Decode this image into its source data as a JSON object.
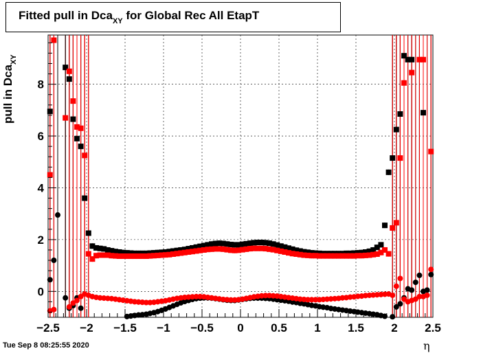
{
  "title_main": "Fitted pull in Dca",
  "title_sub": "XY",
  "title_rest": " for Global Rec All EtapT",
  "timestamp": "Tue Sep  8 08:25:55 2020",
  "chart_data": {
    "type": "scatter",
    "title": "Fitted pull in Dca_XY for Global Rec All EtapT",
    "xlabel": "η",
    "ylabel": "pull in Dca_XY",
    "xlim": [
      -2.5,
      2.5
    ],
    "ylim": [
      -1.0,
      9.9
    ],
    "grid": true,
    "xticks": [
      -2.5,
      -2,
      -1.5,
      -1,
      -0.5,
      0,
      0.5,
      1,
      1.5,
      2,
      2.5
    ],
    "xtick_labels": [
      "−2.5",
      "−2",
      "−1.5",
      "−1",
      "−0.5",
      "0",
      "0.5",
      "1",
      "1.5",
      "2",
      "2.5"
    ],
    "yticks": [
      0,
      2,
      4,
      6,
      8
    ],
    "ytick_labels": [
      "0",
      "2",
      "4",
      "6",
      "8"
    ],
    "series": [
      {
        "color": "#000000",
        "marker": "square",
        "x": [
          -2.475,
          -2.425,
          -2.375,
          -2.325,
          -2.275,
          -2.225,
          -2.175,
          -2.125,
          -2.075,
          -2.025,
          -1.975,
          -1.925,
          -1.875,
          -1.825,
          -1.775,
          -1.725,
          -1.675,
          -1.625,
          -1.575,
          -1.525,
          -1.475,
          -1.425,
          -1.375,
          -1.325,
          -1.275,
          -1.225,
          -1.175,
          -1.125,
          -1.075,
          -1.025,
          -0.975,
          -0.925,
          -0.875,
          -0.825,
          -0.775,
          -0.725,
          -0.675,
          -0.625,
          -0.575,
          -0.525,
          -0.475,
          -0.425,
          -0.375,
          -0.325,
          -0.275,
          -0.225,
          -0.175,
          -0.125,
          -0.075,
          -0.025,
          0.025,
          0.075,
          0.125,
          0.175,
          0.225,
          0.275,
          0.325,
          0.375,
          0.425,
          0.475,
          0.525,
          0.575,
          0.625,
          0.675,
          0.725,
          0.775,
          0.825,
          0.875,
          0.925,
          0.975,
          1.025,
          1.075,
          1.125,
          1.175,
          1.225,
          1.275,
          1.325,
          1.375,
          1.425,
          1.475,
          1.525,
          1.575,
          1.625,
          1.675,
          1.725,
          1.775,
          1.825,
          1.875,
          1.925,
          1.975,
          2.025,
          2.075,
          2.125,
          2.175,
          2.225,
          2.275,
          2.325,
          2.375,
          2.425,
          2.475
        ],
        "y": [
          6.95,
          null,
          null,
          null,
          8.65,
          8.2,
          6.65,
          5.9,
          5.6,
          3.6,
          2.25,
          1.75,
          1.68,
          1.66,
          1.64,
          1.6,
          1.57,
          1.54,
          1.52,
          1.5,
          1.49,
          1.48,
          1.47,
          1.47,
          1.47,
          1.47,
          1.48,
          1.49,
          1.5,
          1.51,
          1.52,
          1.54,
          1.56,
          1.58,
          1.6,
          1.62,
          1.65,
          1.68,
          1.71,
          1.74,
          1.77,
          1.8,
          1.83,
          1.85,
          1.86,
          1.85,
          1.83,
          1.81,
          1.8,
          1.8,
          1.82,
          1.84,
          1.86,
          1.88,
          1.89,
          1.89,
          1.88,
          1.86,
          1.83,
          1.79,
          1.75,
          1.71,
          1.67,
          1.63,
          1.59,
          1.56,
          1.53,
          1.51,
          1.49,
          1.48,
          1.47,
          1.46,
          1.46,
          1.46,
          1.46,
          1.46,
          1.46,
          1.47,
          1.47,
          1.48,
          1.49,
          1.5,
          1.52,
          1.55,
          1.6,
          1.7,
          1.8,
          2.55,
          4.6,
          5.15,
          6.25,
          6.85,
          9.1,
          8.95,
          8.95,
          null,
          null,
          6.9,
          null,
          null
        ]
      },
      {
        "color": "#ff0000",
        "marker": "square",
        "x": [
          -2.475,
          -2.425,
          -2.375,
          -2.325,
          -2.275,
          -2.225,
          -2.175,
          -2.125,
          -2.075,
          -2.025,
          -1.975,
          -1.925,
          -1.875,
          -1.825,
          -1.775,
          -1.725,
          -1.675,
          -1.625,
          -1.575,
          -1.525,
          -1.475,
          -1.425,
          -1.375,
          -1.325,
          -1.275,
          -1.225,
          -1.175,
          -1.125,
          -1.075,
          -1.025,
          -0.975,
          -0.925,
          -0.875,
          -0.825,
          -0.775,
          -0.725,
          -0.675,
          -0.625,
          -0.575,
          -0.525,
          -0.475,
          -0.425,
          -0.375,
          -0.325,
          -0.275,
          -0.225,
          -0.175,
          -0.125,
          -0.075,
          -0.025,
          0.025,
          0.075,
          0.125,
          0.175,
          0.225,
          0.275,
          0.325,
          0.375,
          0.425,
          0.475,
          0.525,
          0.575,
          0.625,
          0.675,
          0.725,
          0.775,
          0.825,
          0.875,
          0.925,
          0.975,
          1.025,
          1.075,
          1.125,
          1.175,
          1.225,
          1.275,
          1.325,
          1.375,
          1.425,
          1.475,
          1.525,
          1.575,
          1.625,
          1.675,
          1.725,
          1.775,
          1.825,
          1.875,
          1.925,
          1.975,
          2.025,
          2.075,
          2.125,
          2.175,
          2.225,
          2.275,
          2.325,
          2.375,
          2.425,
          2.475
        ],
        "y": [
          4.5,
          9.7,
          null,
          null,
          6.7,
          8.5,
          7.35,
          6.35,
          6.3,
          5.25,
          1.45,
          1.25,
          1.38,
          1.4,
          1.4,
          1.4,
          1.38,
          1.37,
          1.36,
          1.36,
          1.36,
          1.36,
          1.36,
          1.36,
          1.36,
          1.36,
          1.37,
          1.38,
          1.39,
          1.4,
          1.41,
          1.42,
          1.44,
          1.46,
          1.48,
          1.5,
          1.52,
          1.54,
          1.56,
          1.58,
          1.6,
          1.62,
          1.63,
          1.64,
          1.64,
          1.63,
          1.61,
          1.59,
          1.58,
          1.59,
          1.61,
          1.63,
          1.65,
          1.66,
          1.66,
          1.66,
          1.65,
          1.63,
          1.61,
          1.58,
          1.55,
          1.52,
          1.49,
          1.46,
          1.44,
          1.42,
          1.4,
          1.39,
          1.38,
          1.38,
          1.37,
          1.37,
          1.37,
          1.37,
          1.37,
          1.37,
          1.37,
          1.37,
          1.37,
          1.37,
          1.38,
          1.38,
          1.39,
          1.4,
          1.42,
          1.44,
          1.5,
          1.6,
          1.45,
          2.45,
          2.65,
          5.15,
          8.05,
          null,
          8.45,
          null,
          8.95,
          8.95,
          null,
          5.4
        ]
      },
      {
        "color": "#000000",
        "marker": "circle",
        "x": [
          -2.475,
          -2.425,
          -2.375,
          -2.325,
          -2.275,
          -2.225,
          -2.175,
          -2.125,
          -2.075,
          -2.025,
          -1.975,
          -1.925,
          -1.875,
          -1.825,
          -1.775,
          -1.725,
          -1.675,
          -1.625,
          -1.575,
          -1.525,
          -1.475,
          -1.425,
          -1.375,
          -1.325,
          -1.275,
          -1.225,
          -1.175,
          -1.125,
          -1.075,
          -1.025,
          -0.975,
          -0.925,
          -0.875,
          -0.825,
          -0.775,
          -0.725,
          -0.675,
          -0.625,
          -0.575,
          -0.525,
          -0.475,
          -0.425,
          -0.375,
          -0.325,
          -0.275,
          -0.225,
          -0.175,
          -0.125,
          -0.075,
          -0.025,
          0.025,
          0.075,
          0.125,
          0.175,
          0.225,
          0.275,
          0.325,
          0.375,
          0.425,
          0.475,
          0.525,
          0.575,
          0.625,
          0.675,
          0.725,
          0.775,
          0.825,
          0.875,
          0.925,
          0.975,
          1.025,
          1.075,
          1.125,
          1.175,
          1.225,
          1.275,
          1.325,
          1.375,
          1.425,
          1.475,
          1.525,
          1.575,
          1.625,
          1.675,
          1.725,
          1.775,
          1.825,
          1.875,
          1.925,
          1.975,
          2.025,
          2.075,
          2.125,
          2.175,
          2.225,
          2.275,
          2.325,
          2.375,
          2.425,
          2.475
        ],
        "y": [
          0.45,
          1.2,
          2.95,
          null,
          -0.25,
          -0.65,
          -0.55,
          -0.25,
          -0.65,
          null,
          null,
          null,
          null,
          null,
          null,
          null,
          null,
          null,
          null,
          null,
          -0.97,
          -0.95,
          -0.93,
          -0.91,
          -0.9,
          -0.88,
          -0.85,
          -0.82,
          -0.78,
          -0.73,
          -0.68,
          -0.62,
          -0.56,
          -0.5,
          -0.44,
          -0.39,
          -0.35,
          -0.31,
          -0.28,
          -0.26,
          -0.25,
          -0.25,
          -0.26,
          -0.28,
          -0.3,
          -0.32,
          -0.34,
          -0.35,
          -0.35,
          -0.33,
          -0.31,
          -0.29,
          -0.27,
          -0.26,
          -0.26,
          -0.26,
          -0.27,
          -0.28,
          -0.3,
          -0.32,
          -0.34,
          -0.36,
          -0.38,
          -0.41,
          -0.43,
          -0.46,
          -0.48,
          -0.51,
          -0.54,
          -0.56,
          -0.59,
          -0.61,
          -0.63,
          -0.66,
          -0.68,
          -0.7,
          -0.72,
          -0.74,
          -0.76,
          -0.78,
          -0.8,
          -0.82,
          -0.84,
          -0.86,
          -0.88,
          -0.9,
          -0.93,
          -0.96,
          null,
          -0.98,
          -0.6,
          -0.48,
          -0.25,
          0.1,
          0.05,
          0.35,
          0.62,
          0.0,
          0.05,
          0.65
        ]
      },
      {
        "color": "#ff0000",
        "marker": "circle",
        "x": [
          -2.475,
          -2.425,
          -2.375,
          -2.325,
          -2.275,
          -2.225,
          -2.175,
          -2.125,
          -2.075,
          -2.025,
          -1.975,
          -1.925,
          -1.875,
          -1.825,
          -1.775,
          -1.725,
          -1.675,
          -1.625,
          -1.575,
          -1.525,
          -1.475,
          -1.425,
          -1.375,
          -1.325,
          -1.275,
          -1.225,
          -1.175,
          -1.125,
          -1.075,
          -1.025,
          -0.975,
          -0.925,
          -0.875,
          -0.825,
          -0.775,
          -0.725,
          -0.675,
          -0.625,
          -0.575,
          -0.525,
          -0.475,
          -0.425,
          -0.375,
          -0.325,
          -0.275,
          -0.225,
          -0.175,
          -0.125,
          -0.075,
          -0.025,
          0.025,
          0.075,
          0.125,
          0.175,
          0.225,
          0.275,
          0.325,
          0.375,
          0.425,
          0.475,
          0.525,
          0.575,
          0.625,
          0.675,
          0.725,
          0.775,
          0.825,
          0.875,
          0.925,
          0.975,
          1.025,
          1.075,
          1.125,
          1.175,
          1.225,
          1.275,
          1.325,
          1.375,
          1.425,
          1.475,
          1.525,
          1.575,
          1.625,
          1.675,
          1.725,
          1.775,
          1.825,
          1.875,
          1.925,
          1.975,
          2.025,
          2.075,
          2.125,
          2.175,
          2.225,
          2.275,
          2.325,
          2.375,
          2.425,
          2.475
        ],
        "y": [
          -0.75,
          -0.7,
          null,
          null,
          null,
          -0.6,
          -0.45,
          -0.35,
          -0.2,
          -0.1,
          -0.15,
          -0.2,
          -0.23,
          -0.25,
          -0.26,
          -0.27,
          -0.28,
          -0.3,
          -0.32,
          -0.34,
          -0.36,
          -0.38,
          -0.4,
          -0.41,
          -0.42,
          -0.43,
          -0.43,
          -0.42,
          -0.4,
          -0.38,
          -0.36,
          -0.33,
          -0.3,
          -0.27,
          -0.25,
          -0.23,
          -0.22,
          -0.21,
          -0.2,
          -0.2,
          -0.21,
          -0.23,
          -0.25,
          -0.27,
          -0.29,
          -0.31,
          -0.32,
          -0.33,
          -0.33,
          -0.32,
          -0.3,
          -0.27,
          -0.24,
          -0.21,
          -0.19,
          -0.17,
          -0.16,
          -0.16,
          -0.17,
          -0.18,
          -0.2,
          -0.22,
          -0.24,
          -0.26,
          -0.28,
          -0.3,
          -0.31,
          -0.32,
          -0.32,
          -0.32,
          -0.32,
          -0.31,
          -0.3,
          -0.29,
          -0.28,
          -0.27,
          -0.25,
          -0.24,
          -0.22,
          -0.21,
          -0.19,
          -0.18,
          -0.16,
          -0.15,
          -0.14,
          -0.13,
          -0.12,
          -0.11,
          -0.1,
          -0.15,
          0.2,
          0.5,
          -0.3,
          -0.4,
          -0.35,
          -0.3,
          -0.2,
          -0.2,
          -0.15,
          0.85
        ]
      }
    ]
  }
}
